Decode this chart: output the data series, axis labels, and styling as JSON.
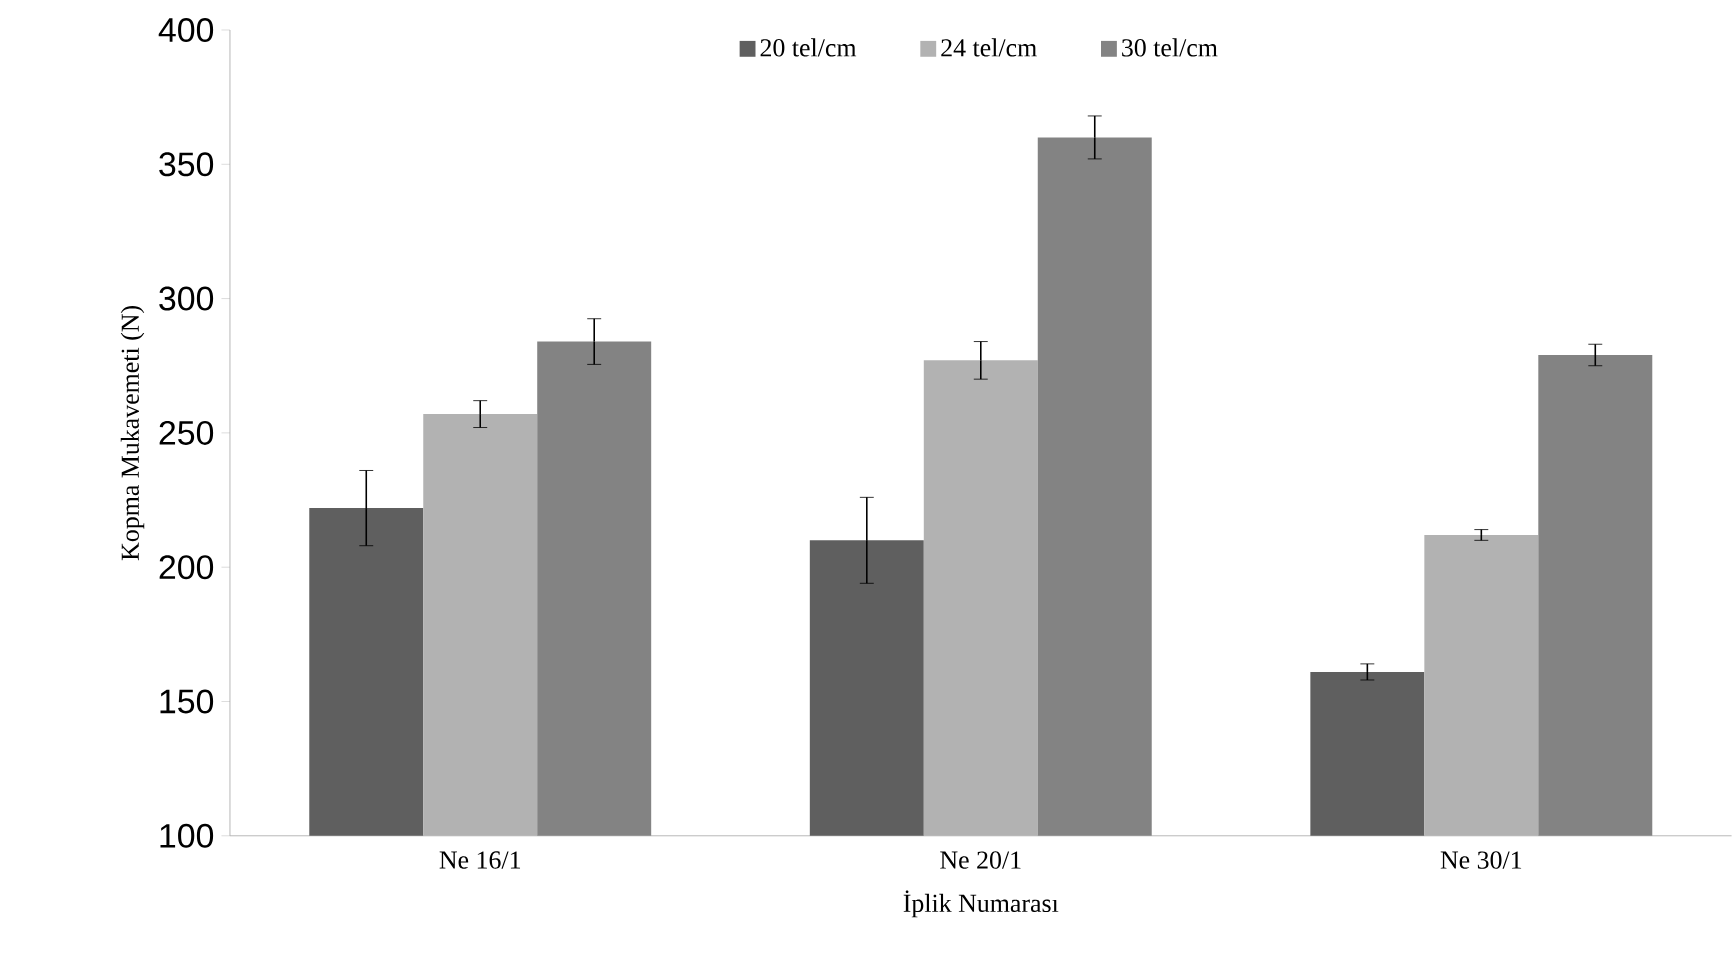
{
  "chart_data": {
    "type": "bar",
    "xlabel": "İplik Numarası",
    "ylabel": "Kopma Mukavemeti (N)",
    "categories": [
      "Ne 16/1",
      "Ne 20/1",
      "Ne 30/1"
    ],
    "series": [
      {
        "name": "20 tel/cm",
        "color": "#5f5f5f",
        "values": [
          222,
          210,
          161
        ],
        "errors": [
          14,
          16,
          3
        ]
      },
      {
        "name": "24 tel/cm",
        "color": "#b2b2b2",
        "values": [
          257,
          277,
          212
        ],
        "errors": [
          5,
          7,
          2
        ]
      },
      {
        "name": "30 tel/cm",
        "color": "#838383",
        "values": [
          284,
          360,
          279
        ],
        "errors": [
          8.5,
          8,
          4
        ]
      }
    ],
    "ylim": [
      100,
      400
    ],
    "yticks": [
      100,
      150,
      200,
      250,
      300,
      350,
      400
    ],
    "grid": false,
    "legend": "top"
  }
}
